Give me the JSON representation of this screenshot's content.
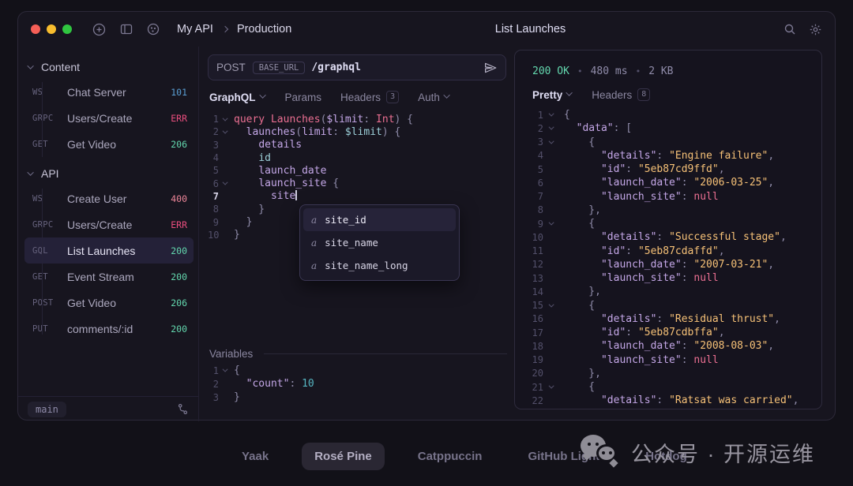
{
  "colors": {
    "love": "#eb6f92",
    "iris": "#c4a7e7",
    "foam": "#9ccfd8",
    "gold": "#f6c177",
    "punct": "#908caa",
    "text": "#e0def4",
    "num": "#56b6c2",
    "status_green": "#63d7ae",
    "status_blue": "#5a9fd4",
    "status_err": "#ea4e7e",
    "status_salmon": "#ee8699"
  },
  "topbar": {
    "traffic_lights": [
      "#f65f57",
      "#f8bd2e",
      "#30c640"
    ],
    "breadcrumb": {
      "workspace": "My API",
      "environment": "Production"
    },
    "title": "List Launches"
  },
  "sidebar": {
    "sections": [
      {
        "label": "Content",
        "items": [
          {
            "method": "WS",
            "name": "Chat Server",
            "status": "101",
            "status_color": "status_blue",
            "selected": false
          },
          {
            "method": "GRPC",
            "name": "Users/Create",
            "status": "ERR",
            "status_color": "status_err",
            "selected": false
          },
          {
            "method": "GET",
            "name": "Get Video",
            "status": "206",
            "status_color": "status_green",
            "selected": false
          }
        ]
      },
      {
        "label": "API",
        "items": [
          {
            "method": "WS",
            "name": "Create User",
            "status": "400",
            "status_color": "status_salmon",
            "selected": false
          },
          {
            "method": "GRPC",
            "name": "Users/Create",
            "status": "ERR",
            "status_color": "status_err",
            "selected": false
          },
          {
            "method": "GQL",
            "name": "List Launches",
            "status": "200",
            "status_color": "status_green",
            "selected": true
          },
          {
            "method": "GET",
            "name": "Event Stream",
            "status": "200",
            "status_color": "status_green",
            "selected": false
          },
          {
            "method": "POST",
            "name": "Get Video",
            "status": "206",
            "status_color": "status_green",
            "selected": false
          },
          {
            "method": "PUT",
            "name": "comments/:id",
            "status": "200",
            "status_color": "status_green",
            "selected": false
          }
        ]
      }
    ],
    "footer": {
      "branch": "main"
    }
  },
  "request": {
    "method": "POST",
    "base_url_badge": "BASE_URL",
    "path": "/graphql",
    "tabs": [
      {
        "label": "GraphQL",
        "chevron": true,
        "active": true
      },
      {
        "label": "Params"
      },
      {
        "label": "Headers",
        "badge": "3"
      },
      {
        "label": "Auth",
        "chevron": true
      }
    ]
  },
  "graphql_editor": {
    "lines": [
      {
        "n": "1",
        "fold": true,
        "tokens": [
          [
            "query",
            "love"
          ],
          [
            " ",
            "text"
          ],
          [
            "Launches",
            "love"
          ],
          [
            "(",
            "punct"
          ],
          [
            "$limit",
            "iris"
          ],
          [
            ": ",
            "punct"
          ],
          [
            "Int",
            "love"
          ],
          [
            ") {",
            "punct"
          ]
        ]
      },
      {
        "n": "2",
        "fold": true,
        "tokens": [
          [
            "  ",
            "text"
          ],
          [
            "launches",
            "iris"
          ],
          [
            "(",
            "punct"
          ],
          [
            "limit",
            "iris"
          ],
          [
            ": ",
            "punct"
          ],
          [
            "$limit",
            "foam"
          ],
          [
            ") {",
            "punct"
          ]
        ]
      },
      {
        "n": "3",
        "tokens": [
          [
            "    ",
            "text"
          ],
          [
            "details",
            "iris"
          ]
        ]
      },
      {
        "n": "4",
        "tokens": [
          [
            "    ",
            "text"
          ],
          [
            "id",
            "foam"
          ]
        ]
      },
      {
        "n": "5",
        "tokens": [
          [
            "    ",
            "text"
          ],
          [
            "launch_date",
            "iris"
          ]
        ]
      },
      {
        "n": "6",
        "fold": true,
        "tokens": [
          [
            "    ",
            "text"
          ],
          [
            "launch_site ",
            "iris"
          ],
          [
            "{",
            "punct"
          ]
        ]
      },
      {
        "n": "7",
        "active": true,
        "cursor": true,
        "tokens": [
          [
            "      ",
            "text"
          ],
          [
            "site",
            "iris"
          ]
        ]
      },
      {
        "n": "8",
        "tokens": [
          [
            "    }",
            "punct"
          ]
        ]
      },
      {
        "n": "9",
        "tokens": [
          [
            "  }",
            "punct"
          ]
        ]
      },
      {
        "n": "10",
        "tokens": [
          [
            "}",
            "punct"
          ]
        ]
      }
    ]
  },
  "autocomplete": {
    "items": [
      {
        "prefix": "a",
        "label": "site_id",
        "selected": true
      },
      {
        "prefix": "a",
        "label": "site_name",
        "selected": false
      },
      {
        "prefix": "a",
        "label": "site_name_long",
        "selected": false
      }
    ]
  },
  "variables": {
    "label": "Variables",
    "lines": [
      {
        "n": "1",
        "fold": true,
        "tokens": [
          [
            "{",
            "punct"
          ]
        ]
      },
      {
        "n": "2",
        "tokens": [
          [
            "  ",
            "text"
          ],
          [
            "\"count\"",
            "iris"
          ],
          [
            ": ",
            "punct"
          ],
          [
            "10",
            "num"
          ]
        ]
      },
      {
        "n": "3",
        "tokens": [
          [
            "}",
            "punct"
          ]
        ]
      }
    ]
  },
  "response": {
    "status": "200 OK",
    "sep": "•",
    "time": "480 ms",
    "size": "2 KB",
    "tabs": [
      {
        "label": "Pretty",
        "chevron": true,
        "active": true
      },
      {
        "label": "Headers",
        "badge": "8"
      }
    ],
    "lines": [
      {
        "n": "1",
        "fold": true,
        "tokens": [
          [
            "{",
            "punct"
          ]
        ]
      },
      {
        "n": "2",
        "fold": true,
        "tokens": [
          [
            "  ",
            "text"
          ],
          [
            "\"data\"",
            "iris"
          ],
          [
            ": ",
            "punct"
          ],
          [
            "[",
            "punct"
          ]
        ]
      },
      {
        "n": "3",
        "fold": true,
        "tokens": [
          [
            "    {",
            "punct"
          ]
        ]
      },
      {
        "n": "4",
        "tokens": [
          [
            "      ",
            "text"
          ],
          [
            "\"details\"",
            "iris"
          ],
          [
            ": ",
            "punct"
          ],
          [
            "\"Engine failure\"",
            "gold"
          ],
          [
            ",",
            "punct"
          ]
        ]
      },
      {
        "n": "5",
        "tokens": [
          [
            "      ",
            "text"
          ],
          [
            "\"id\"",
            "iris"
          ],
          [
            ": ",
            "punct"
          ],
          [
            "\"5eb87cd9ffd\"",
            "gold"
          ],
          [
            ",",
            "punct"
          ]
        ]
      },
      {
        "n": "6",
        "tokens": [
          [
            "      ",
            "text"
          ],
          [
            "\"launch_date\"",
            "iris"
          ],
          [
            ": ",
            "punct"
          ],
          [
            "\"2006-03-25\"",
            "gold"
          ],
          [
            ",",
            "punct"
          ]
        ]
      },
      {
        "n": "7",
        "tokens": [
          [
            "      ",
            "text"
          ],
          [
            "\"launch_site\"",
            "iris"
          ],
          [
            ": ",
            "punct"
          ],
          [
            "null",
            "love"
          ]
        ]
      },
      {
        "n": "8",
        "tokens": [
          [
            "    },",
            "punct"
          ]
        ]
      },
      {
        "n": "9",
        "fold": true,
        "tokens": [
          [
            "    {",
            "punct"
          ]
        ]
      },
      {
        "n": "10",
        "tokens": [
          [
            "      ",
            "text"
          ],
          [
            "\"details\"",
            "iris"
          ],
          [
            ": ",
            "punct"
          ],
          [
            "\"Successful stage\"",
            "gold"
          ],
          [
            ",",
            "punct"
          ]
        ]
      },
      {
        "n": "11",
        "tokens": [
          [
            "      ",
            "text"
          ],
          [
            "\"id\"",
            "iris"
          ],
          [
            ": ",
            "punct"
          ],
          [
            "\"5eb87cdaffd\"",
            "gold"
          ],
          [
            ",",
            "punct"
          ]
        ]
      },
      {
        "n": "12",
        "tokens": [
          [
            "      ",
            "text"
          ],
          [
            "\"launch_date\"",
            "iris"
          ],
          [
            ": ",
            "punct"
          ],
          [
            "\"2007-03-21\"",
            "gold"
          ],
          [
            ",",
            "punct"
          ]
        ]
      },
      {
        "n": "13",
        "tokens": [
          [
            "      ",
            "text"
          ],
          [
            "\"launch_site\"",
            "iris"
          ],
          [
            ": ",
            "punct"
          ],
          [
            "null",
            "love"
          ]
        ]
      },
      {
        "n": "14",
        "tokens": [
          [
            "    },",
            "punct"
          ]
        ]
      },
      {
        "n": "15",
        "fold": true,
        "tokens": [
          [
            "    {",
            "punct"
          ]
        ]
      },
      {
        "n": "16",
        "tokens": [
          [
            "      ",
            "text"
          ],
          [
            "\"details\"",
            "iris"
          ],
          [
            ": ",
            "punct"
          ],
          [
            "\"Residual thrust\"",
            "gold"
          ],
          [
            ",",
            "punct"
          ]
        ]
      },
      {
        "n": "17",
        "tokens": [
          [
            "      ",
            "text"
          ],
          [
            "\"id\"",
            "iris"
          ],
          [
            ": ",
            "punct"
          ],
          [
            "\"5eb87cdbffa\"",
            "gold"
          ],
          [
            ",",
            "punct"
          ]
        ]
      },
      {
        "n": "18",
        "tokens": [
          [
            "      ",
            "text"
          ],
          [
            "\"launch_date\"",
            "iris"
          ],
          [
            ": ",
            "punct"
          ],
          [
            "\"2008-08-03\"",
            "gold"
          ],
          [
            ",",
            "punct"
          ]
        ]
      },
      {
        "n": "19",
        "tokens": [
          [
            "      ",
            "text"
          ],
          [
            "\"launch_site\"",
            "iris"
          ],
          [
            ": ",
            "punct"
          ],
          [
            "null",
            "love"
          ]
        ]
      },
      {
        "n": "20",
        "tokens": [
          [
            "    },",
            "punct"
          ]
        ]
      },
      {
        "n": "21",
        "fold": true,
        "tokens": [
          [
            "    {",
            "punct"
          ]
        ]
      },
      {
        "n": "22",
        "tokens": [
          [
            "      ",
            "text"
          ],
          [
            "\"details\"",
            "iris"
          ],
          [
            ": ",
            "punct"
          ],
          [
            "\"Ratsat was carried\"",
            "gold"
          ],
          [
            ",",
            "punct"
          ]
        ]
      }
    ]
  },
  "theme_bar": {
    "items": [
      {
        "label": "Yaak",
        "active": false
      },
      {
        "label": "Rosé Pine",
        "active": true
      },
      {
        "label": "Catppuccin",
        "active": false
      },
      {
        "label": "GitHub Light",
        "active": false
      },
      {
        "label": "Hotdog",
        "active": false
      }
    ]
  },
  "watermark": {
    "text": "公众号 · 开源运维"
  }
}
